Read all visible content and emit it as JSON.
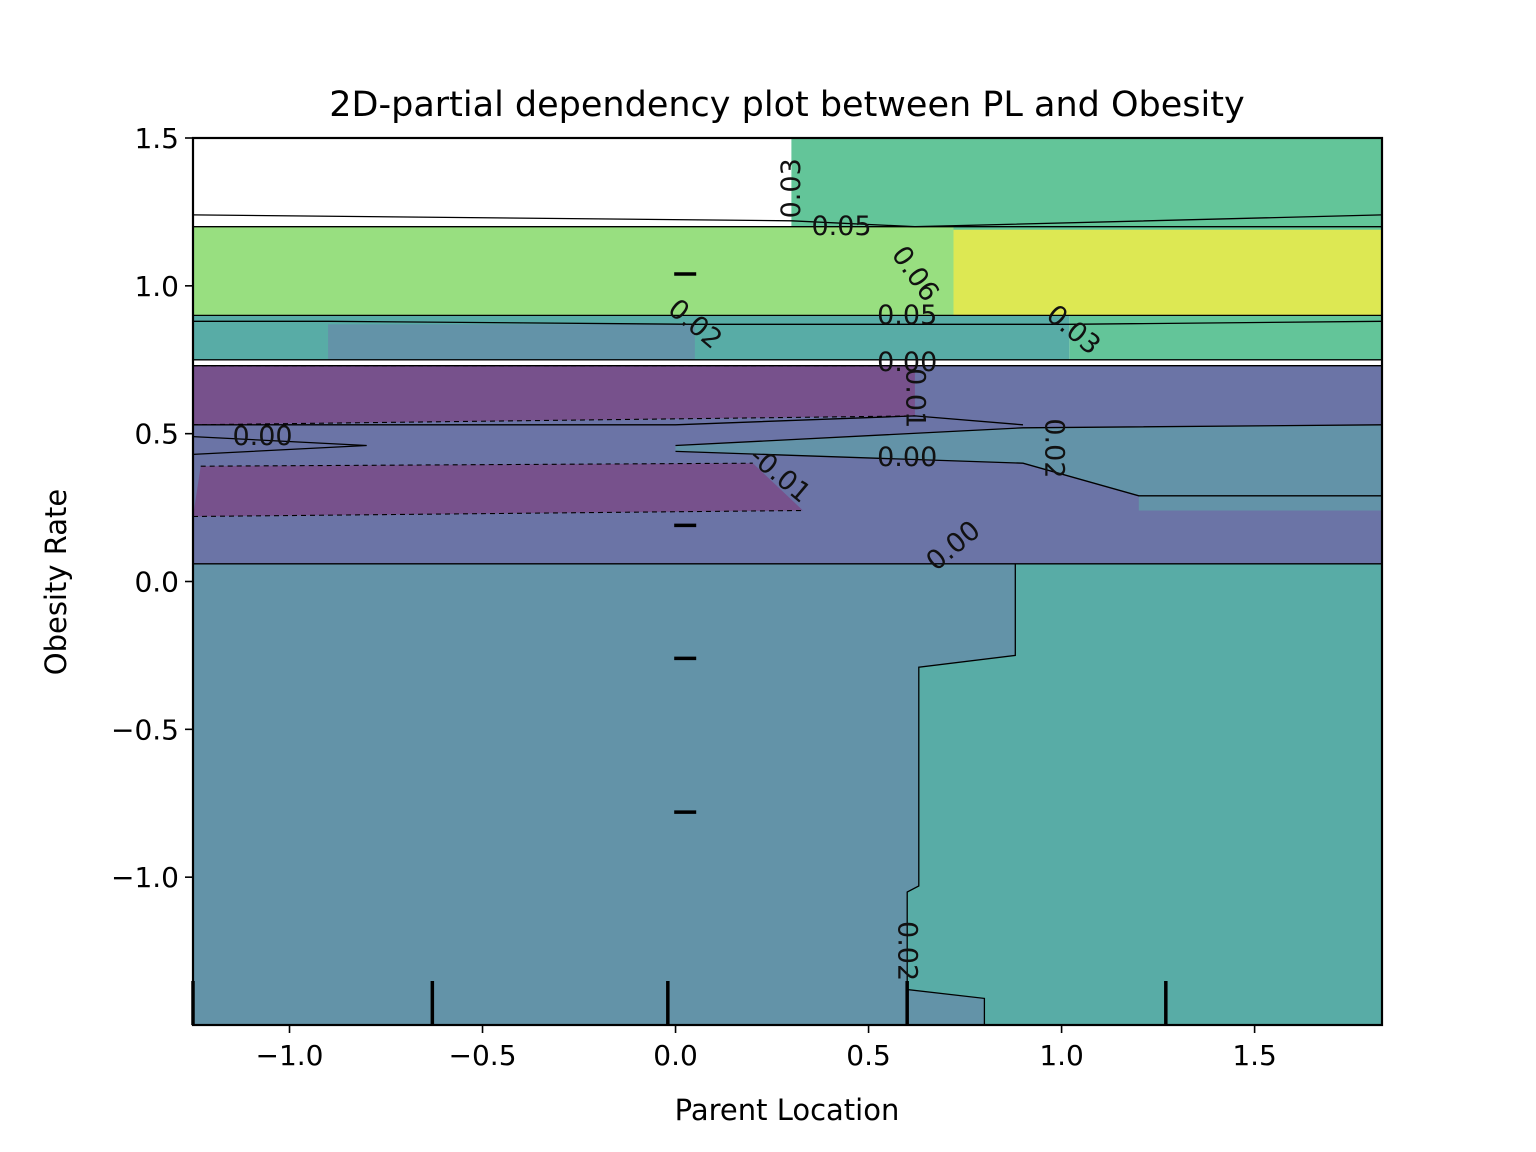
{
  "chart_data": {
    "type": "contour",
    "title": "2D-partial dependency plot between PL and Obesity",
    "xlabel": "Parent Location",
    "ylabel": "Obesity Rate",
    "xlim": [
      -1.25,
      1.83
    ],
    "ylim": [
      -1.5,
      1.5
    ],
    "x_ticks": [
      {
        "value": -1.0,
        "label": "−1.0"
      },
      {
        "value": -0.5,
        "label": "−0.5"
      },
      {
        "value": 0.0,
        "label": "0.0"
      },
      {
        "value": 0.5,
        "label": "0.5"
      },
      {
        "value": 1.0,
        "label": "1.0"
      },
      {
        "value": 1.5,
        "label": "1.5"
      }
    ],
    "y_ticks": [
      {
        "value": 1.5,
        "label": "1.5"
      },
      {
        "value": 1.0,
        "label": "1.0"
      },
      {
        "value": 0.5,
        "label": "0.5"
      },
      {
        "value": 0.0,
        "label": "0.0"
      },
      {
        "value": -0.5,
        "label": "−0.5"
      },
      {
        "value": -1.0,
        "label": "−1.0"
      }
    ],
    "colormap": "viridis",
    "level_colors": {
      "-0.01": "#77518c",
      "0.00": "#6b74a6",
      "0.01": "#6393a8",
      "0.02": "#58aca6",
      "0.03": "#63c599",
      "0.05": "#98df80",
      "0.06": "#dde853"
    },
    "regions": [
      {
        "level": "0.03",
        "points": [
          [
            0.3,
            1.5
          ],
          [
            1.83,
            1.5
          ],
          [
            1.83,
            0.75
          ],
          [
            1.02,
            0.75
          ],
          [
            1.02,
            0.9
          ],
          [
            0.72,
            0.9
          ],
          [
            0.72,
            1.2
          ],
          [
            0.3,
            1.2
          ]
        ]
      },
      {
        "level": "0.06",
        "points": [
          [
            0.72,
            1.19
          ],
          [
            1.83,
            1.19
          ],
          [
            1.83,
            0.9
          ],
          [
            0.72,
            0.9
          ]
        ]
      },
      {
        "level": "0.05",
        "points": [
          [
            -1.25,
            1.2
          ],
          [
            0.72,
            1.2
          ],
          [
            0.72,
            0.9
          ],
          [
            -1.25,
            0.9
          ]
        ]
      },
      {
        "level": "0.02",
        "points": [
          [
            -1.25,
            0.9
          ],
          [
            1.02,
            0.9
          ],
          [
            1.02,
            0.75
          ],
          [
            -1.25,
            0.75
          ]
        ]
      },
      {
        "level": "0.01",
        "points": [
          [
            -0.9,
            0.87
          ],
          [
            0.05,
            0.87
          ],
          [
            0.05,
            0.75
          ],
          [
            -0.9,
            0.75
          ]
        ]
      },
      {
        "level": "0.00",
        "points": [
          [
            -1.25,
            0.73
          ],
          [
            1.83,
            0.73
          ],
          [
            1.83,
            0.06
          ],
          [
            -1.25,
            0.06
          ]
        ]
      },
      {
        "level": "-0.01",
        "points": [
          [
            -1.25,
            0.73
          ],
          [
            0.62,
            0.73
          ],
          [
            0.62,
            0.56
          ],
          [
            -1.25,
            0.53
          ]
        ]
      },
      {
        "level": "-0.01",
        "points": [
          [
            -1.23,
            0.39
          ],
          [
            0.2,
            0.4
          ],
          [
            0.33,
            0.24
          ],
          [
            -1.25,
            0.22
          ]
        ]
      },
      {
        "level": "0.01",
        "points": [
          [
            0.0,
            0.46
          ],
          [
            0.9,
            0.52
          ],
          [
            1.83,
            0.53
          ],
          [
            1.83,
            0.24
          ],
          [
            1.2,
            0.24
          ],
          [
            1.2,
            0.29
          ],
          [
            0.9,
            0.4
          ],
          [
            0.0,
            0.44
          ]
        ]
      },
      {
        "level": "0.01",
        "points": [
          [
            -1.25,
            0.06
          ],
          [
            1.83,
            0.06
          ],
          [
            1.83,
            -1.5
          ],
          [
            -1.25,
            -1.5
          ]
        ]
      },
      {
        "level": "0.02",
        "points": [
          [
            0.9,
            0.06
          ],
          [
            1.83,
            0.06
          ],
          [
            1.83,
            -1.5
          ],
          [
            0.8,
            -1.5
          ],
          [
            0.8,
            -1.41
          ],
          [
            0.6,
            -1.38
          ],
          [
            0.6,
            -1.05
          ],
          [
            0.63,
            -1.03
          ],
          [
            0.63,
            -0.29
          ],
          [
            0.88,
            -0.25
          ],
          [
            0.88,
            0.06
          ]
        ]
      }
    ],
    "contour_lines": [
      [
        [
          -1.25,
          1.24
        ],
        [
          0.3,
          1.22
        ],
        [
          0.62,
          1.2
        ],
        [
          1.83,
          1.24
        ]
      ],
      [
        [
          -1.25,
          1.2
        ],
        [
          0.3,
          1.2
        ],
        [
          0.72,
          1.2
        ],
        [
          1.83,
          1.2
        ]
      ],
      [
        [
          -1.25,
          0.9
        ],
        [
          0.4,
          0.9
        ],
        [
          1.02,
          0.9
        ],
        [
          1.83,
          0.9
        ]
      ],
      [
        [
          -1.25,
          0.88
        ],
        [
          -0.9,
          0.88
        ],
        [
          0.05,
          0.87
        ],
        [
          1.02,
          0.87
        ],
        [
          1.83,
          0.88
        ]
      ],
      [
        [
          -1.25,
          0.75
        ],
        [
          0.5,
          0.75
        ],
        [
          1.02,
          0.75
        ],
        [
          1.83,
          0.75
        ]
      ],
      [
        [
          -1.25,
          0.73
        ],
        [
          0.62,
          0.73
        ],
        [
          1.83,
          0.73
        ]
      ],
      [
        [
          -1.25,
          0.53
        ],
        [
          0.0,
          0.53
        ],
        [
          0.62,
          0.56
        ],
        [
          0.9,
          0.53
        ]
      ],
      [
        [
          -1.25,
          0.49
        ],
        [
          -0.8,
          0.46
        ],
        [
          -1.25,
          0.43
        ]
      ],
      [
        [
          0.0,
          0.46
        ],
        [
          0.9,
          0.52
        ],
        [
          1.83,
          0.53
        ]
      ],
      [
        [
          0.0,
          0.44
        ],
        [
          0.9,
          0.4
        ],
        [
          1.2,
          0.29
        ],
        [
          1.83,
          0.29
        ]
      ],
      [
        [
          -1.25,
          0.06
        ],
        [
          0.2,
          0.06
        ],
        [
          0.88,
          0.06
        ],
        [
          1.83,
          0.06
        ]
      ],
      [
        [
          0.88,
          0.06
        ],
        [
          0.88,
          -0.25
        ],
        [
          0.63,
          -0.29
        ],
        [
          0.63,
          -1.03
        ],
        [
          0.6,
          -1.05
        ],
        [
          0.6,
          -1.38
        ],
        [
          0.8,
          -1.41
        ],
        [
          0.8,
          -1.5
        ]
      ]
    ],
    "dashed_lines": [
      [
        [
          -1.25,
          0.73
        ],
        [
          0.62,
          0.73
        ]
      ],
      [
        [
          -1.25,
          0.53
        ],
        [
          0.62,
          0.56
        ]
      ],
      [
        [
          -1.23,
          0.39
        ],
        [
          0.2,
          0.4
        ]
      ],
      [
        [
          -1.25,
          0.22
        ],
        [
          0.33,
          0.24
        ]
      ]
    ],
    "contour_labels": [
      {
        "text": "0.03",
        "x": 0.3,
        "y": 1.33,
        "angle": -90
      },
      {
        "text": "0.05",
        "x": 0.43,
        "y": 1.2,
        "angle": 0
      },
      {
        "text": "0.06",
        "x": 0.62,
        "y": 1.04,
        "angle": 55
      },
      {
        "text": "0.02",
        "x": 0.05,
        "y": 0.87,
        "angle": 40
      },
      {
        "text": "0.05",
        "x": 0.6,
        "y": 0.9,
        "angle": 0
      },
      {
        "text": "0.03",
        "x": 1.03,
        "y": 0.85,
        "angle": 40
      },
      {
        "text": "0.00",
        "x": 0.6,
        "y": 0.74,
        "angle": 0
      },
      {
        "text": "0.01",
        "x": 0.62,
        "y": 0.62,
        "angle": 90
      },
      {
        "text": "0.02",
        "x": 0.98,
        "y": 0.45,
        "angle": 90
      },
      {
        "text": "0.00",
        "x": -1.07,
        "y": 0.49,
        "angle": 0
      },
      {
        "text": "-0.01",
        "x": 0.27,
        "y": 0.36,
        "angle": 40
      },
      {
        "text": "0.00",
        "x": 0.6,
        "y": 0.42,
        "angle": 0
      },
      {
        "text": "0.00",
        "x": 0.72,
        "y": 0.12,
        "angle": -40
      },
      {
        "text": "0.02",
        "x": 0.6,
        "y": -1.25,
        "angle": 90
      }
    ],
    "rug_x": [
      -1.25,
      -0.63,
      -0.02,
      0.6,
      1.27
    ],
    "rug_y": [
      1.04,
      0.19,
      -0.26,
      -0.78
    ]
  }
}
